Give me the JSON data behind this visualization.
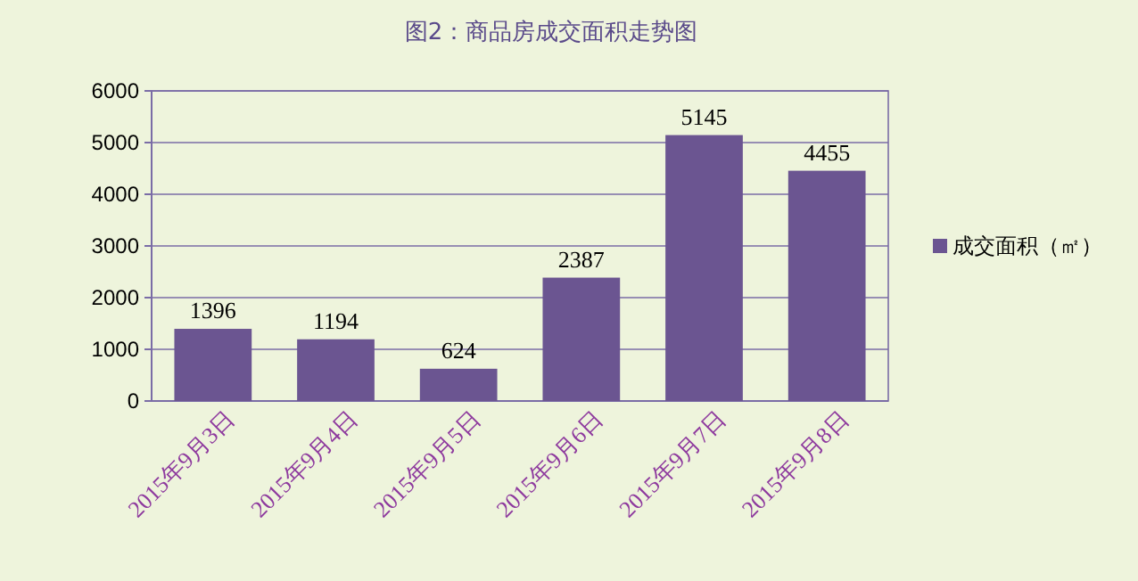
{
  "chart_data": {
    "type": "bar",
    "title": "图2：商品房成交面积走势图",
    "categories": [
      "2015年9月3日",
      "2015年9月4日",
      "2015年9月5日",
      "2015年9月6日",
      "2015年9月7日",
      "2015年9月8日"
    ],
    "series": [
      {
        "name": "成交面积（㎡）",
        "color": "#6b5591",
        "values": [
          1396,
          1194,
          624,
          2387,
          5145,
          4455
        ]
      }
    ],
    "ylim": [
      0,
      6000
    ],
    "yticks": [
      0,
      1000,
      2000,
      3000,
      4000,
      5000,
      6000
    ],
    "grid": "y",
    "legend": "right",
    "data_labels": true
  }
}
